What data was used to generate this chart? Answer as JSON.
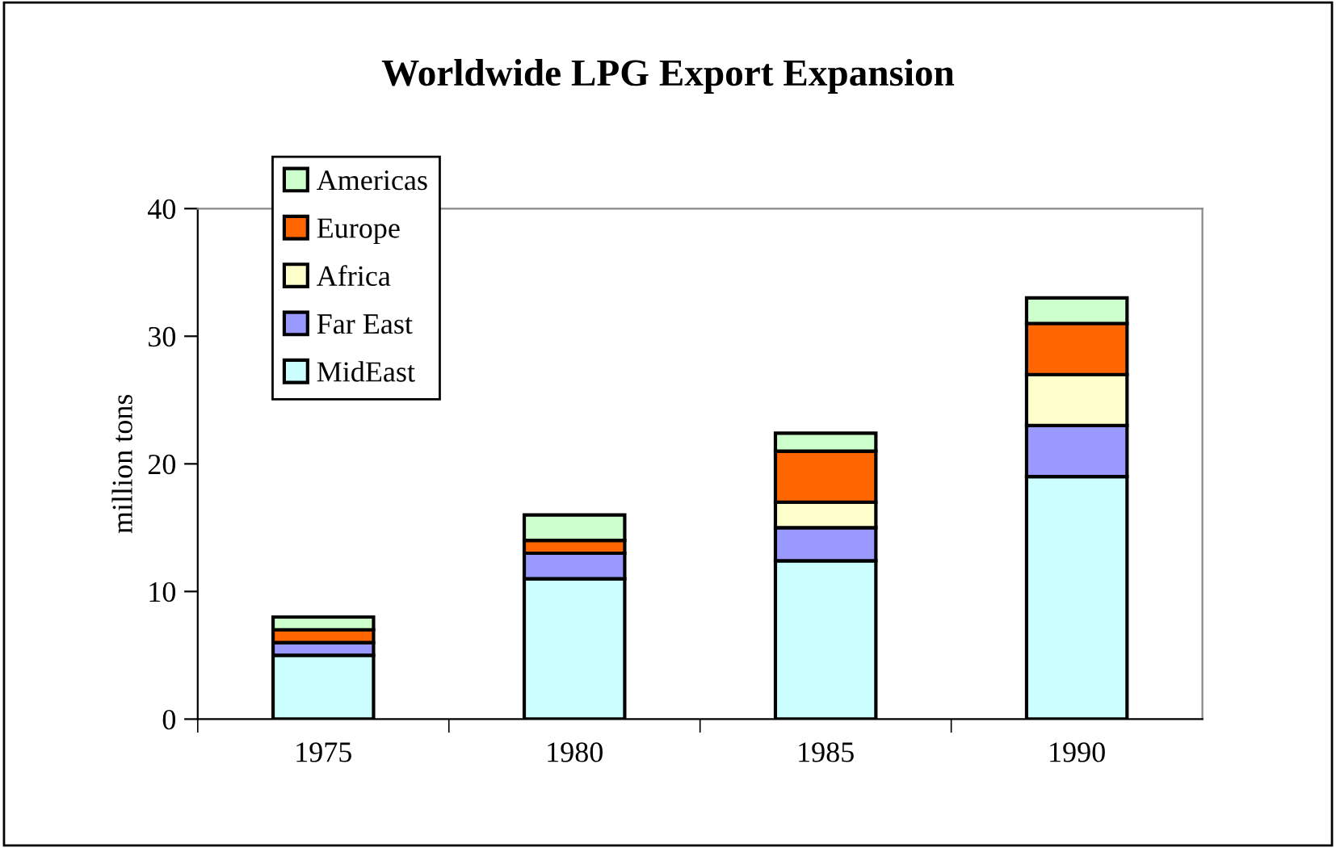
{
  "chart_data": {
    "type": "bar",
    "stacked": true,
    "title": "Worldwide LPG Export Expansion",
    "ylabel": "million tons",
    "categories": [
      "1975",
      "1980",
      "1985",
      "1990"
    ],
    "series": [
      {
        "name": "MidEast",
        "color": "#ccffff",
        "values": [
          5,
          11,
          12.4,
          19
        ]
      },
      {
        "name": "Far East",
        "color": "#9999ff",
        "values": [
          1,
          2,
          2.6,
          4
        ]
      },
      {
        "name": "Africa",
        "color": "#ffffcc",
        "values": [
          0,
          0,
          2,
          4
        ]
      },
      {
        "name": "Europe",
        "color": "#ff6600",
        "values": [
          1,
          1,
          4,
          4
        ]
      },
      {
        "name": "Americas",
        "color": "#ccffcc",
        "values": [
          1,
          2,
          1.4,
          2
        ]
      }
    ],
    "ylim": [
      0,
      40
    ],
    "yticks": [
      0,
      10,
      20,
      30,
      40
    ],
    "grid": false,
    "legend": "top left"
  }
}
